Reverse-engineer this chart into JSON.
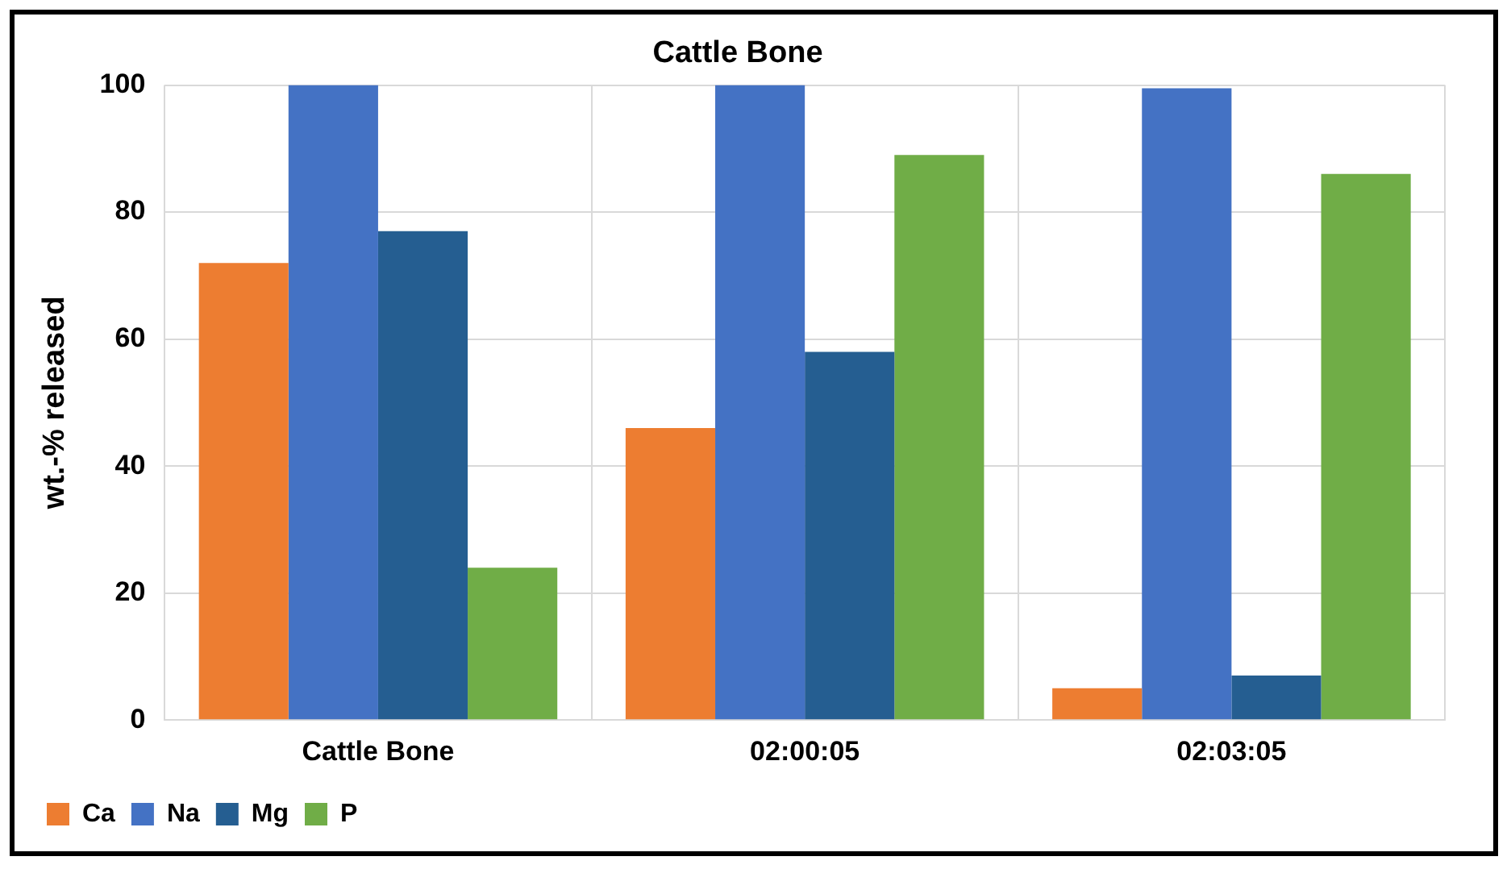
{
  "chart_data": {
    "type": "bar",
    "title": "Cattle Bone",
    "ylabel": "wt.-% released",
    "categories": [
      "Cattle Bone",
      "02:00:05",
      "02:03:05"
    ],
    "series": [
      {
        "name": "Ca",
        "color": "#ed7d31",
        "values": [
          72,
          46,
          5
        ]
      },
      {
        "name": "Na",
        "color": "#4472c4",
        "values": [
          100,
          100,
          99.5
        ]
      },
      {
        "name": "Mg",
        "color": "#255e91",
        "values": [
          77,
          58,
          7
        ]
      },
      {
        "name": "P",
        "color": "#70ad47",
        "values": [
          24,
          89,
          86
        ]
      }
    ],
    "ylim": [
      0,
      100
    ],
    "yticks": [
      0,
      20,
      40,
      60,
      80,
      100
    ],
    "grid": true,
    "legend": "bottom left"
  }
}
